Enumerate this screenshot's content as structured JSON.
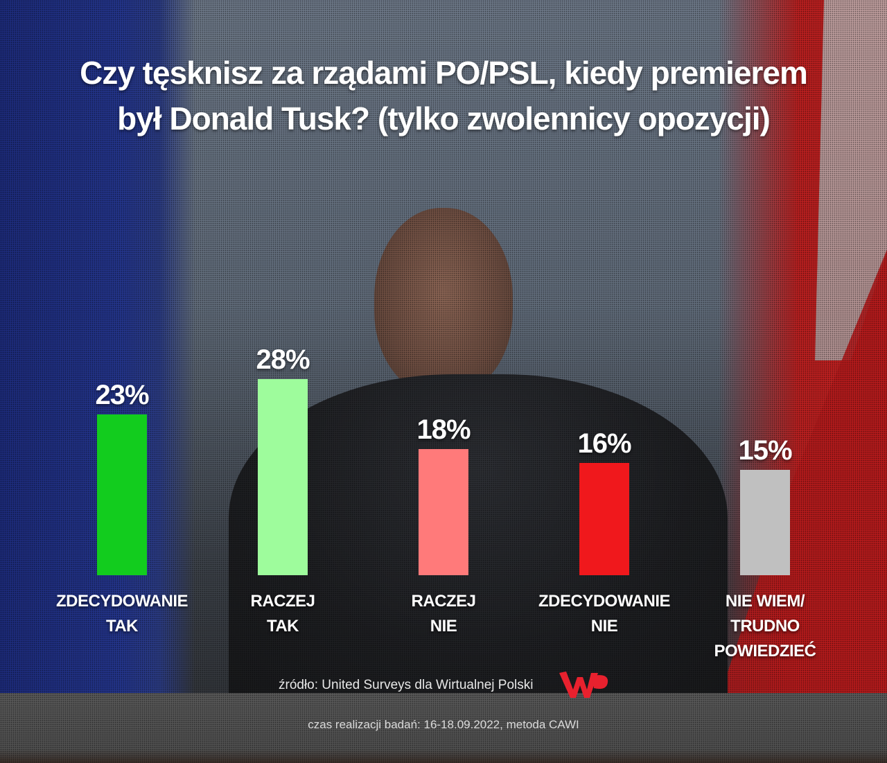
{
  "title": {
    "line1": "Czy tęsknisz za rządami PO/PSL, kiedy premierem",
    "line2": "był Donald Tusk? (tylko zwolennicy opozycji)"
  },
  "bars": [
    {
      "label_line1": "ZDECYDOWANIE",
      "label_line2": "TAK",
      "value_label": "23%",
      "color": "#12cc1e"
    },
    {
      "label_line1": "RACZEJ",
      "label_line2": "TAK",
      "value_label": "28%",
      "color": "#9efc9c"
    },
    {
      "label_line1": "RACZEJ",
      "label_line2": "NIE",
      "value_label": "18%",
      "color": "#ff7a7a"
    },
    {
      "label_line1": "ZDECYDOWANIE",
      "label_line2": "NIE",
      "value_label": "16%",
      "color": "#f0181c"
    },
    {
      "label_line1": "NIE WIEM/",
      "label_line2": "TRUDNO POWIEDZIEĆ",
      "value_label": "15%",
      "color": "#c0c0c0"
    }
  ],
  "footer": {
    "source": "źródło: United Surveys dla Wirtualnej Polski",
    "logo": "WP",
    "logo_color": "#e8212e",
    "method": "czas realizacji badań: 16-18.09.2022, metoda CAWI"
  },
  "chart_data": {
    "type": "bar",
    "title": "Czy tęsknisz za rządami PO/PSL, kiedy premierem był Donald Tusk? (tylko zwolennicy opozycji)",
    "categories": [
      "ZDECYDOWANIE TAK",
      "RACZEJ TAK",
      "RACZEJ NIE",
      "ZDECYDOWANIE NIE",
      "NIE WIEM/ TRUDNO POWIEDZIEĆ"
    ],
    "values": [
      23,
      28,
      18,
      16,
      15
    ],
    "unit": "%",
    "colors": [
      "#12cc1e",
      "#9efc9c",
      "#ff7a7a",
      "#f0181c",
      "#c0c0c0"
    ],
    "xlabel": "",
    "ylabel": "",
    "grid": false,
    "legend": "none",
    "source": "źródło: United Surveys dla Wirtualnej Polski",
    "note": "czas realizacji badań: 16-18.09.2022, metoda CAWI"
  }
}
